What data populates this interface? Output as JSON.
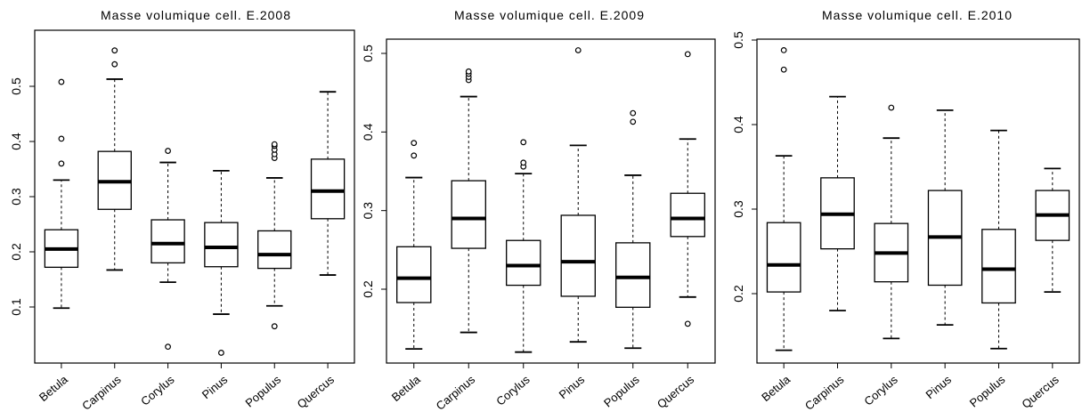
{
  "chart_data": [
    {
      "type": "box",
      "title": "Masse volumique cell. E.2008",
      "xlabel": "",
      "ylabel": "",
      "categories": [
        "Betula",
        "Carpinus",
        "Corylus",
        "Pinus",
        "Populus",
        "Quercus"
      ],
      "yticks": [
        "0.1",
        "0.2",
        "0.3",
        "0.4",
        "0.5"
      ],
      "ylim": [
        0.0,
        0.6
      ],
      "boxes": [
        {
          "whisker_low": 0.098,
          "q1": 0.172,
          "median": 0.205,
          "q3": 0.24,
          "whisker_high": 0.33,
          "outliers": [
            0.36,
            0.405,
            0.508
          ]
        },
        {
          "whisker_low": 0.167,
          "q1": 0.277,
          "median": 0.327,
          "q3": 0.382,
          "whisker_high": 0.513,
          "outliers": [
            0.54,
            0.565
          ]
        },
        {
          "whisker_low": 0.145,
          "q1": 0.18,
          "median": 0.215,
          "q3": 0.258,
          "whisker_high": 0.362,
          "outliers": [
            0.028,
            0.383
          ]
        },
        {
          "whisker_low": 0.087,
          "q1": 0.173,
          "median": 0.208,
          "q3": 0.253,
          "whisker_high": 0.347,
          "outliers": [
            0.017
          ]
        },
        {
          "whisker_low": 0.102,
          "q1": 0.17,
          "median": 0.195,
          "q3": 0.238,
          "whisker_high": 0.334,
          "outliers": [
            0.065,
            0.37,
            0.377,
            0.385,
            0.392,
            0.395
          ]
        },
        {
          "whisker_low": 0.158,
          "q1": 0.26,
          "median": 0.31,
          "q3": 0.368,
          "whisker_high": 0.49,
          "outliers": []
        }
      ]
    },
    {
      "type": "box",
      "title": "Masse volumique cell. E.2009",
      "xlabel": "",
      "ylabel": "",
      "categories": [
        "Betula",
        "Carpinus",
        "Corylus",
        "Pinus",
        "Populus",
        "Quercus"
      ],
      "yticks": [
        "0.2",
        "0.3",
        "0.4",
        "0.5"
      ],
      "ylim": [
        0.1,
        0.51
      ],
      "boxes": [
        {
          "whisker_low": 0.124,
          "q1": 0.183,
          "median": 0.214,
          "q3": 0.254,
          "whisker_high": 0.342,
          "outliers": [
            0.37,
            0.386
          ]
        },
        {
          "whisker_low": 0.145,
          "q1": 0.252,
          "median": 0.29,
          "q3": 0.338,
          "whisker_high": 0.445,
          "outliers": [
            0.466,
            0.47,
            0.474,
            0.477
          ]
        },
        {
          "whisker_low": 0.12,
          "q1": 0.205,
          "median": 0.23,
          "q3": 0.262,
          "whisker_high": 0.347,
          "outliers": [
            0.356,
            0.361,
            0.387
          ]
        },
        {
          "whisker_low": 0.133,
          "q1": 0.191,
          "median": 0.235,
          "q3": 0.294,
          "whisker_high": 0.383,
          "outliers": [
            0.504
          ]
        },
        {
          "whisker_low": 0.125,
          "q1": 0.177,
          "median": 0.215,
          "q3": 0.259,
          "whisker_high": 0.345,
          "outliers": [
            0.413,
            0.424
          ]
        },
        {
          "whisker_low": 0.19,
          "q1": 0.267,
          "median": 0.29,
          "q3": 0.322,
          "whisker_high": 0.391,
          "outliers": [
            0.156,
            0.499
          ]
        }
      ]
    },
    {
      "type": "box",
      "title": "Masse volumique cell. E.2010",
      "xlabel": "",
      "ylabel": "",
      "categories": [
        "Betula",
        "Carpinus",
        "Corylus",
        "Pinus",
        "Populus",
        "Quercus"
      ],
      "yticks": [
        "0.2",
        "0.3",
        "0.4",
        "0.5"
      ],
      "ylim": [
        0.12,
        0.5
      ],
      "boxes": [
        {
          "whisker_low": 0.133,
          "q1": 0.202,
          "median": 0.234,
          "q3": 0.284,
          "whisker_high": 0.363,
          "outliers": [
            0.465,
            0.488
          ]
        },
        {
          "whisker_low": 0.18,
          "q1": 0.253,
          "median": 0.294,
          "q3": 0.337,
          "whisker_high": 0.433,
          "outliers": []
        },
        {
          "whisker_low": 0.147,
          "q1": 0.214,
          "median": 0.248,
          "q3": 0.283,
          "whisker_high": 0.384,
          "outliers": [
            0.42
          ]
        },
        {
          "whisker_low": 0.163,
          "q1": 0.21,
          "median": 0.267,
          "q3": 0.322,
          "whisker_high": 0.417,
          "outliers": []
        },
        {
          "whisker_low": 0.135,
          "q1": 0.189,
          "median": 0.229,
          "q3": 0.276,
          "whisker_high": 0.393,
          "outliers": []
        },
        {
          "whisker_low": 0.202,
          "q1": 0.263,
          "median": 0.293,
          "q3": 0.322,
          "whisker_high": 0.348,
          "outliers": []
        }
      ]
    }
  ]
}
